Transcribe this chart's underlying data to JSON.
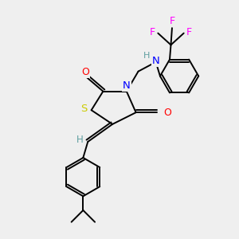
{
  "background_color": "#efefef",
  "atom_colors": {
    "C": "#000000",
    "H": "#5f9ea0",
    "N": "#0000ff",
    "O": "#ff0000",
    "S": "#cccc00",
    "F": "#ff00ff"
  },
  "bond_color": "#000000",
  "bond_width": 1.4,
  "figsize": [
    3.0,
    3.0
  ],
  "dpi": 100,
  "xlim": [
    0,
    10
  ],
  "ylim": [
    0,
    10
  ]
}
